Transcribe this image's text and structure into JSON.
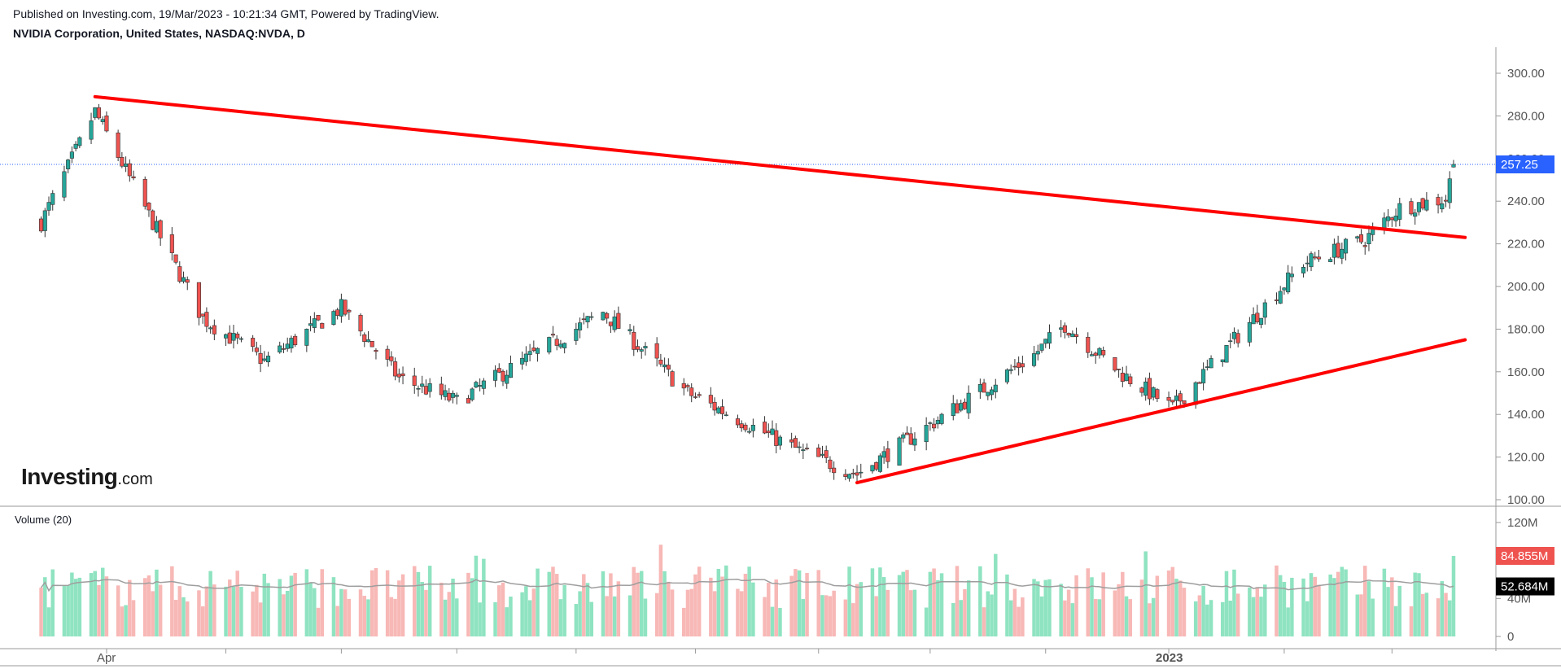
{
  "header": {
    "published": "Published on Investing.com, 19/Mar/2023 - 10:21:34 GMT, Powered by TradingView.",
    "symbol": "NVIDIA Corporation, United States, NASDAQ:NVDA, D"
  },
  "logo": {
    "brand": "Investing",
    "suffix": ".com"
  },
  "volume_panel": {
    "title": "Volume (20)"
  },
  "colors": {
    "up": "#26a69a",
    "down": "#ef5350",
    "trendline": "#ff0000",
    "last_price_badge": "#2962ff",
    "vol_up": "#8fe3c1",
    "vol_down": "#f7b8b6"
  },
  "chart_data": [
    {
      "type": "candlestick",
      "interval": "D",
      "ylim": [
        100,
        300
      ],
      "y_ticks": [
        "300.00",
        "280.00",
        "260.00",
        "240.00",
        "220.00",
        "200.00",
        "180.00",
        "160.00",
        "140.00",
        "120.00",
        "100.00"
      ],
      "x_tick_labels": [
        "Apr",
        "2023"
      ],
      "last_price": 257.25,
      "last_price_label": "257.25",
      "approx_close_path": [
        {
          "date": "2022-03-15",
          "close": 230
        },
        {
          "date": "2022-03-29",
          "close": 282
        },
        {
          "date": "2022-04-26",
          "close": 185
        },
        {
          "date": "2022-05-12",
          "close": 165
        },
        {
          "date": "2022-06-01",
          "close": 190
        },
        {
          "date": "2022-06-16",
          "close": 157
        },
        {
          "date": "2022-07-01",
          "close": 146
        },
        {
          "date": "2022-08-08",
          "close": 188
        },
        {
          "date": "2022-08-30",
          "close": 150
        },
        {
          "date": "2022-09-29",
          "close": 122
        },
        {
          "date": "2022-10-13",
          "close": 112
        },
        {
          "date": "2022-11-28",
          "close": 168
        },
        {
          "date": "2022-12-06",
          "close": 182
        },
        {
          "date": "2022-12-20",
          "close": 160
        },
        {
          "date": "2023-01-03",
          "close": 143
        },
        {
          "date": "2023-02-06",
          "close": 211
        },
        {
          "date": "2023-02-22",
          "close": 222
        },
        {
          "date": "2023-03-03",
          "close": 237
        },
        {
          "date": "2023-03-15",
          "close": 241
        },
        {
          "date": "2023-03-17",
          "close": 257.25
        }
      ],
      "trendlines": [
        {
          "name": "descending resistance",
          "from": {
            "date": "2022-03-29",
            "price": 289
          },
          "to": {
            "date": "2023-03-20",
            "price": 223
          }
        },
        {
          "name": "ascending support",
          "from": {
            "date": "2022-10-13",
            "price": 108
          },
          "to": {
            "date": "2023-03-20",
            "price": 175
          }
        }
      ]
    },
    {
      "type": "bar",
      "title": "Volume (20)",
      "ylim": [
        0,
        120000000
      ],
      "y_ticks": [
        "120M",
        "80M",
        "40M",
        "0"
      ],
      "last_volume_label": "84.855M",
      "volume_ma_label": "52.684M",
      "volume_ma_value": 52684000,
      "last_volume": 84855000
    }
  ]
}
